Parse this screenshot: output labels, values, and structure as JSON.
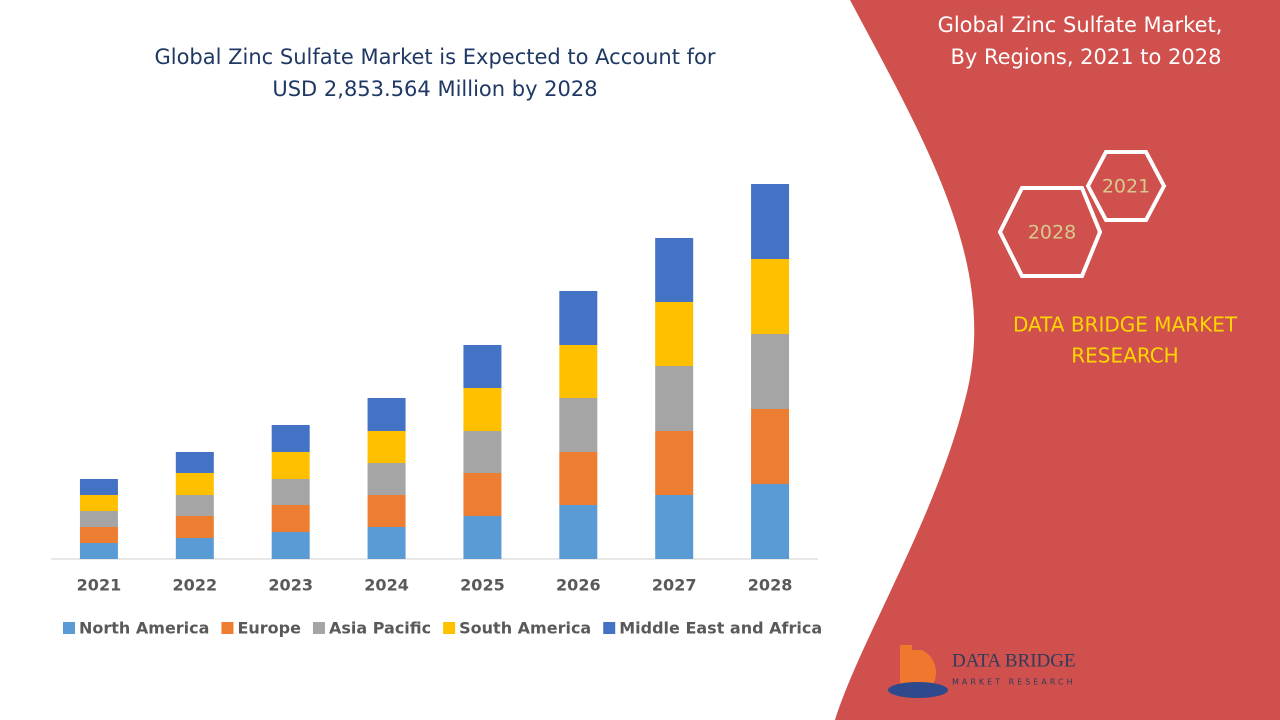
{
  "chart_data": {
    "type": "bar",
    "stacked": true,
    "title": [
      "Global Zinc Sulfate Market is Expected to Account for",
      "USD 2,853.564 Million by 2028"
    ],
    "categories": [
      "2021",
      "2022",
      "2023",
      "2024",
      "2025",
      "2026",
      "2027",
      "2028"
    ],
    "series": [
      {
        "name": "North America",
        "color": "#5b9bd5",
        "values": [
          16,
          21,
          27,
          32,
          43,
          54,
          64,
          75
        ]
      },
      {
        "name": "Europe",
        "color": "#ed7d31",
        "values": [
          16,
          22,
          27,
          32,
          43,
          53,
          64,
          75
        ]
      },
      {
        "name": "Asia Pacific",
        "color": "#a5a5a5",
        "values": [
          16,
          21,
          26,
          32,
          42,
          54,
          65,
          75
        ]
      },
      {
        "name": "South America",
        "color": "#ffc000",
        "values": [
          16,
          22,
          27,
          32,
          43,
          53,
          64,
          75
        ]
      },
      {
        "name": "Middle East and Africa",
        "color": "#4472c4",
        "values": [
          16,
          21,
          27,
          33,
          43,
          54,
          64,
          75
        ]
      }
    ],
    "ylim": [
      0,
      400
    ],
    "legend": "bottom"
  },
  "panel": {
    "title": [
      "Global Zinc Sulfate Market,",
      "By Regions, 2021 to 2028"
    ],
    "hexagons": [
      "2021",
      "2028"
    ],
    "brand": [
      "DATA BRIDGE MARKET",
      "RESEARCH"
    ]
  },
  "logo": {
    "name": "DATA BRIDGE",
    "tagline": "MARKET RESEARCH"
  }
}
